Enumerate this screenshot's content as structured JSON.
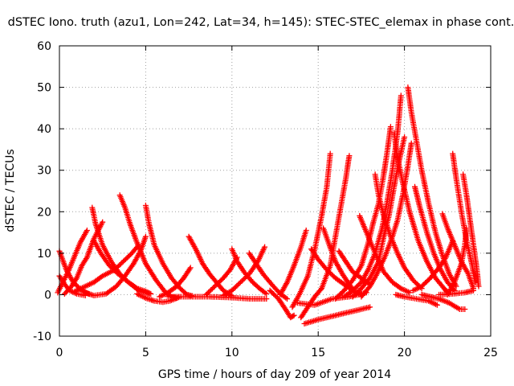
{
  "chart_data": {
    "type": "scatter",
    "title": "dSTEC Iono. truth (azu1, Lon=242, Lat=34, h=145): STEC-STEC_elemax in phase cont.",
    "xlabel": "GPS time / hours of day 209 of year 2014",
    "ylabel": "dSTEC  / TECUs",
    "xlim": [
      0,
      25
    ],
    "ylim": [
      -10,
      60
    ],
    "x_ticks": [
      0,
      5,
      10,
      15,
      20,
      25
    ],
    "y_ticks": [
      -10,
      0,
      10,
      20,
      30,
      40,
      50,
      60
    ],
    "grid": true,
    "marker": "+",
    "color": "#ff0000",
    "arcs": [
      {
        "points": [
          [
            0,
            10.5
          ],
          [
            0.4,
            6
          ],
          [
            0.8,
            3
          ],
          [
            1.3,
            1
          ],
          [
            1.7,
            0.2
          ]
        ]
      },
      {
        "points": [
          [
            0,
            4.5
          ],
          [
            0.3,
            2.5
          ],
          [
            0.6,
            1
          ],
          [
            1,
            0.2
          ],
          [
            1.5,
            -0.2
          ]
        ]
      },
      {
        "points": [
          [
            -0.1,
            0.5
          ],
          [
            0.2,
            3
          ],
          [
            0.5,
            5.5
          ],
          [
            0.9,
            9.5
          ],
          [
            1.2,
            12.5
          ],
          [
            1.6,
            15.5
          ]
        ]
      },
      {
        "points": [
          [
            0.3,
            0.2
          ],
          [
            0.7,
            2
          ],
          [
            1,
            4
          ],
          [
            1.3,
            7
          ],
          [
            1.6,
            9
          ],
          [
            2,
            13.5
          ],
          [
            2.5,
            17.5
          ]
        ]
      },
      {
        "points": [
          [
            1.9,
            21
          ],
          [
            2.1,
            17
          ],
          [
            2.5,
            12
          ],
          [
            3,
            8
          ],
          [
            3.5,
            5
          ],
          [
            4,
            3
          ],
          [
            4.5,
            1.5
          ],
          [
            5,
            0.8
          ],
          [
            5.3,
            0.2
          ]
        ]
      },
      {
        "points": [
          [
            2,
            13
          ],
          [
            2.4,
            10
          ],
          [
            2.9,
            7
          ],
          [
            3.4,
            5
          ],
          [
            4,
            3
          ],
          [
            4.6,
            1
          ],
          [
            5.2,
            0.2
          ]
        ]
      },
      {
        "points": [
          [
            1.5,
            0.5
          ],
          [
            2,
            -0.2
          ],
          [
            2.7,
            0.2
          ],
          [
            3.3,
            2
          ],
          [
            3.8,
            4.5
          ],
          [
            4.3,
            7.5
          ],
          [
            4.7,
            10.5
          ],
          [
            5,
            14
          ]
        ]
      },
      {
        "points": [
          [
            0.9,
            0.8
          ],
          [
            1.5,
            2
          ],
          [
            2,
            3
          ],
          [
            2.5,
            4.5
          ],
          [
            3.2,
            6
          ],
          [
            3.7,
            8
          ],
          [
            4.2,
            10
          ],
          [
            4.6,
            12
          ]
        ]
      },
      {
        "points": [
          [
            3.5,
            24
          ],
          [
            3.8,
            21
          ],
          [
            4.1,
            17
          ],
          [
            4.5,
            12.5
          ],
          [
            5,
            7.5
          ],
          [
            5.6,
            3.5
          ],
          [
            6.1,
            0.8
          ],
          [
            6.5,
            -0.5
          ],
          [
            6.8,
            -0.8
          ]
        ]
      },
      {
        "points": [
          [
            5,
            21.5
          ],
          [
            5.2,
            17
          ],
          [
            5.5,
            12
          ],
          [
            6,
            7.5
          ],
          [
            6.5,
            4
          ],
          [
            7,
            1.5
          ],
          [
            7.4,
            0
          ],
          [
            7.7,
            -0.3
          ]
        ]
      },
      {
        "points": [
          [
            4.5,
            0.2
          ],
          [
            5,
            -0.8
          ],
          [
            5.5,
            -1.5
          ],
          [
            6,
            -1.8
          ],
          [
            6.4,
            -1.5
          ],
          [
            7,
            -0.5
          ]
        ]
      },
      {
        "points": [
          [
            5.8,
            -0.5
          ],
          [
            6.3,
            0.5
          ],
          [
            6.8,
            2
          ],
          [
            7.2,
            4
          ],
          [
            7.6,
            6.5
          ]
        ]
      },
      {
        "points": [
          [
            7.5,
            14
          ],
          [
            7.9,
            11
          ],
          [
            8.3,
            7.5
          ],
          [
            8.7,
            5
          ],
          [
            9.1,
            3
          ],
          [
            9.5,
            1
          ],
          [
            10,
            -0.3
          ]
        ]
      },
      {
        "points": [
          [
            6.3,
            -0.5
          ],
          [
            7.5,
            -0.5
          ],
          [
            8.7,
            -0.5
          ],
          [
            10,
            -0.7
          ],
          [
            11,
            -1
          ],
          [
            12,
            -1
          ]
        ]
      },
      {
        "points": [
          [
            8.5,
            0
          ],
          [
            9,
            2
          ],
          [
            9.5,
            4
          ],
          [
            9.9,
            6
          ],
          [
            10.3,
            9
          ]
        ]
      },
      {
        "points": [
          [
            10,
            11
          ],
          [
            10.3,
            8
          ],
          [
            10.7,
            5.5
          ],
          [
            11.2,
            3
          ],
          [
            11.6,
            1.5
          ],
          [
            12,
            0.2
          ]
        ]
      },
      {
        "points": [
          [
            11,
            10
          ],
          [
            11.4,
            7.5
          ],
          [
            11.8,
            5
          ],
          [
            12.3,
            2.5
          ],
          [
            12.8,
            0.2
          ],
          [
            13.2,
            -1
          ]
        ]
      },
      {
        "points": [
          [
            9.5,
            -0.2
          ],
          [
            10,
            1
          ],
          [
            10.5,
            3
          ],
          [
            11,
            5
          ],
          [
            11.5,
            8
          ],
          [
            11.9,
            11.5
          ]
        ]
      },
      {
        "points": [
          [
            12.2,
            1
          ],
          [
            12.7,
            -1
          ],
          [
            13.1,
            -3.5
          ],
          [
            13.4,
            -5.5
          ],
          [
            13.6,
            -5
          ]
        ]
      },
      {
        "points": [
          [
            12.8,
            0
          ],
          [
            13.2,
            3
          ],
          [
            13.6,
            7
          ],
          [
            14,
            11.5
          ],
          [
            14.3,
            15.5
          ]
        ]
      },
      {
        "points": [
          [
            13.5,
            -3
          ],
          [
            13.9,
            0
          ],
          [
            14.4,
            4.5
          ],
          [
            14.8,
            11
          ],
          [
            15.2,
            19
          ],
          [
            15.5,
            26
          ],
          [
            15.7,
            34
          ]
        ]
      },
      {
        "points": [
          [
            14,
            -5.5
          ],
          [
            14.4,
            -3
          ],
          [
            14.8,
            -0.5
          ],
          [
            15.2,
            1.5
          ],
          [
            15.7,
            7
          ],
          [
            16,
            14
          ],
          [
            16.3,
            21
          ],
          [
            16.6,
            28
          ],
          [
            16.8,
            33.5
          ]
        ]
      },
      {
        "points": [
          [
            14.2,
            -7
          ],
          [
            15,
            -6
          ],
          [
            16,
            -5
          ],
          [
            17,
            -4
          ],
          [
            18,
            -3
          ]
        ]
      },
      {
        "points": [
          [
            13.8,
            -2
          ],
          [
            14.8,
            -2.5
          ],
          [
            15.8,
            -1
          ],
          [
            16.8,
            -0.5
          ],
          [
            17.8,
            0.5
          ]
        ]
      },
      {
        "points": [
          [
            14.6,
            11
          ],
          [
            15,
            8.5
          ],
          [
            15.5,
            6
          ],
          [
            16,
            4
          ],
          [
            16.5,
            2.5
          ],
          [
            17,
            1
          ],
          [
            17.5,
            0.2
          ]
        ]
      },
      {
        "points": [
          [
            15.3,
            16
          ],
          [
            15.6,
            12.5
          ],
          [
            16,
            8
          ],
          [
            16.4,
            5
          ],
          [
            16.8,
            2.5
          ],
          [
            17.2,
            0.2
          ]
        ]
      },
      {
        "points": [
          [
            16.2,
            10.5
          ],
          [
            16.6,
            8
          ],
          [
            17,
            5.5
          ],
          [
            17.5,
            4
          ],
          [
            18,
            2.5
          ]
        ]
      },
      {
        "points": [
          [
            16,
            -1
          ],
          [
            16.5,
            1
          ],
          [
            17,
            3.5
          ],
          [
            17.5,
            7
          ],
          [
            17.9,
            12.5
          ],
          [
            18.2,
            17.5
          ],
          [
            18.5,
            22
          ],
          [
            18.8,
            29
          ],
          [
            19,
            34.5
          ],
          [
            19.2,
            40.5
          ]
        ]
      },
      {
        "points": [
          [
            16.5,
            -0.5
          ],
          [
            17,
            1
          ],
          [
            17.5,
            3
          ],
          [
            17.9,
            6
          ],
          [
            18.3,
            10
          ],
          [
            18.7,
            16
          ],
          [
            19,
            22.5
          ],
          [
            19.3,
            30
          ],
          [
            19.6,
            39
          ],
          [
            19.8,
            48
          ]
        ]
      },
      {
        "points": [
          [
            17,
            -0.5
          ],
          [
            17.5,
            1.5
          ],
          [
            18,
            4
          ],
          [
            18.5,
            8
          ],
          [
            18.8,
            14
          ],
          [
            19.1,
            19
          ],
          [
            19.4,
            26
          ],
          [
            19.7,
            32.5
          ],
          [
            20,
            38
          ]
        ]
      },
      {
        "points": [
          [
            17.5,
            -0.5
          ],
          [
            18,
            2
          ],
          [
            18.4,
            5
          ],
          [
            18.9,
            9.5
          ],
          [
            19.3,
            14
          ],
          [
            19.6,
            18
          ],
          [
            19.9,
            24
          ],
          [
            20.2,
            31
          ],
          [
            20.4,
            36.5
          ]
        ]
      },
      {
        "points": [
          [
            18.3,
            29
          ],
          [
            18.5,
            24
          ],
          [
            18.8,
            19
          ],
          [
            19.2,
            14
          ],
          [
            19.6,
            10
          ],
          [
            20,
            6.5
          ],
          [
            20.5,
            3.5
          ],
          [
            21,
            1.5
          ]
        ]
      },
      {
        "points": [
          [
            17.4,
            19
          ],
          [
            17.8,
            15
          ],
          [
            18.3,
            10
          ],
          [
            18.8,
            5.5
          ],
          [
            19.3,
            3
          ],
          [
            19.8,
            1.5
          ],
          [
            20.3,
            0.5
          ]
        ]
      },
      {
        "points": [
          [
            19.4,
            39
          ],
          [
            19.6,
            33
          ],
          [
            19.9,
            27
          ],
          [
            20.3,
            20
          ],
          [
            20.8,
            13
          ],
          [
            21.3,
            8
          ],
          [
            21.8,
            4
          ],
          [
            22.3,
            1.5
          ],
          [
            22.5,
            0.5
          ]
        ]
      },
      {
        "points": [
          [
            20.2,
            50
          ],
          [
            20.4,
            44
          ],
          [
            20.7,
            37
          ],
          [
            21,
            30
          ],
          [
            21.4,
            22
          ],
          [
            21.8,
            15
          ],
          [
            22.2,
            9.5
          ],
          [
            22.6,
            5
          ],
          [
            23,
            2
          ]
        ]
      },
      {
        "points": [
          [
            20.6,
            26
          ],
          [
            20.9,
            21
          ],
          [
            21.3,
            15
          ],
          [
            21.7,
            10
          ],
          [
            22.1,
            6
          ],
          [
            22.5,
            3
          ],
          [
            22.9,
            1
          ]
        ]
      },
      {
        "points": [
          [
            19.5,
            0
          ],
          [
            20,
            -0.5
          ],
          [
            20.7,
            -1
          ],
          [
            21.4,
            -1.5
          ],
          [
            21.9,
            -2.5
          ]
        ]
      },
      {
        "points": [
          [
            20.5,
            1
          ],
          [
            21,
            2
          ],
          [
            21.5,
            4
          ],
          [
            22,
            6.5
          ],
          [
            22.4,
            9
          ],
          [
            22.8,
            13
          ]
        ]
      },
      {
        "points": [
          [
            21,
            0
          ],
          [
            21.5,
            -0.5
          ],
          [
            22,
            -1
          ],
          [
            22.6,
            -2
          ],
          [
            23.2,
            -3.5
          ],
          [
            23.5,
            -3.5
          ]
        ]
      },
      {
        "points": [
          [
            22.2,
            19.5
          ],
          [
            22.5,
            16
          ],
          [
            22.9,
            12
          ],
          [
            23.3,
            8
          ],
          [
            23.7,
            5
          ],
          [
            24,
            1.5
          ]
        ]
      },
      {
        "points": [
          [
            22.8,
            34
          ],
          [
            23,
            28
          ],
          [
            23.3,
            20
          ],
          [
            23.6,
            13
          ],
          [
            23.9,
            7.5
          ],
          [
            24.1,
            3
          ]
        ]
      },
      {
        "points": [
          [
            23.4,
            29
          ],
          [
            23.6,
            24
          ],
          [
            23.8,
            18
          ],
          [
            24,
            12
          ],
          [
            24.2,
            6
          ],
          [
            24.3,
            2
          ]
        ]
      },
      {
        "points": [
          [
            22.5,
            0
          ],
          [
            22.9,
            3
          ],
          [
            23.3,
            7.5
          ],
          [
            23.5,
            12
          ],
          [
            23.6,
            16
          ]
        ]
      },
      {
        "points": [
          [
            22,
            0
          ],
          [
            22.8,
            0.2
          ],
          [
            23.5,
            0.5
          ],
          [
            24,
            1
          ]
        ]
      }
    ]
  }
}
